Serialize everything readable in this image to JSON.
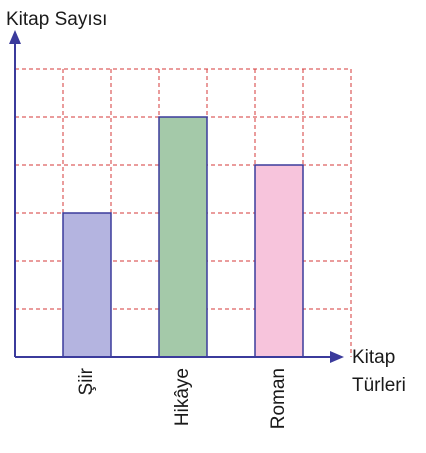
{
  "chart_data": {
    "type": "bar",
    "ylabel": "Kitap Sayısı",
    "xlabel": [
      "Kitap",
      "Türleri"
    ],
    "categories": [
      "Şiir",
      "Hikâye",
      "Roman"
    ],
    "values": [
      3,
      5,
      4
    ],
    "colors": [
      "#b4b4e0",
      "#a4c9a9",
      "#f7c4dc"
    ],
    "ylim": [
      0,
      6
    ],
    "yticks": [
      1,
      2,
      3,
      4,
      5,
      6
    ],
    "grid": true
  }
}
